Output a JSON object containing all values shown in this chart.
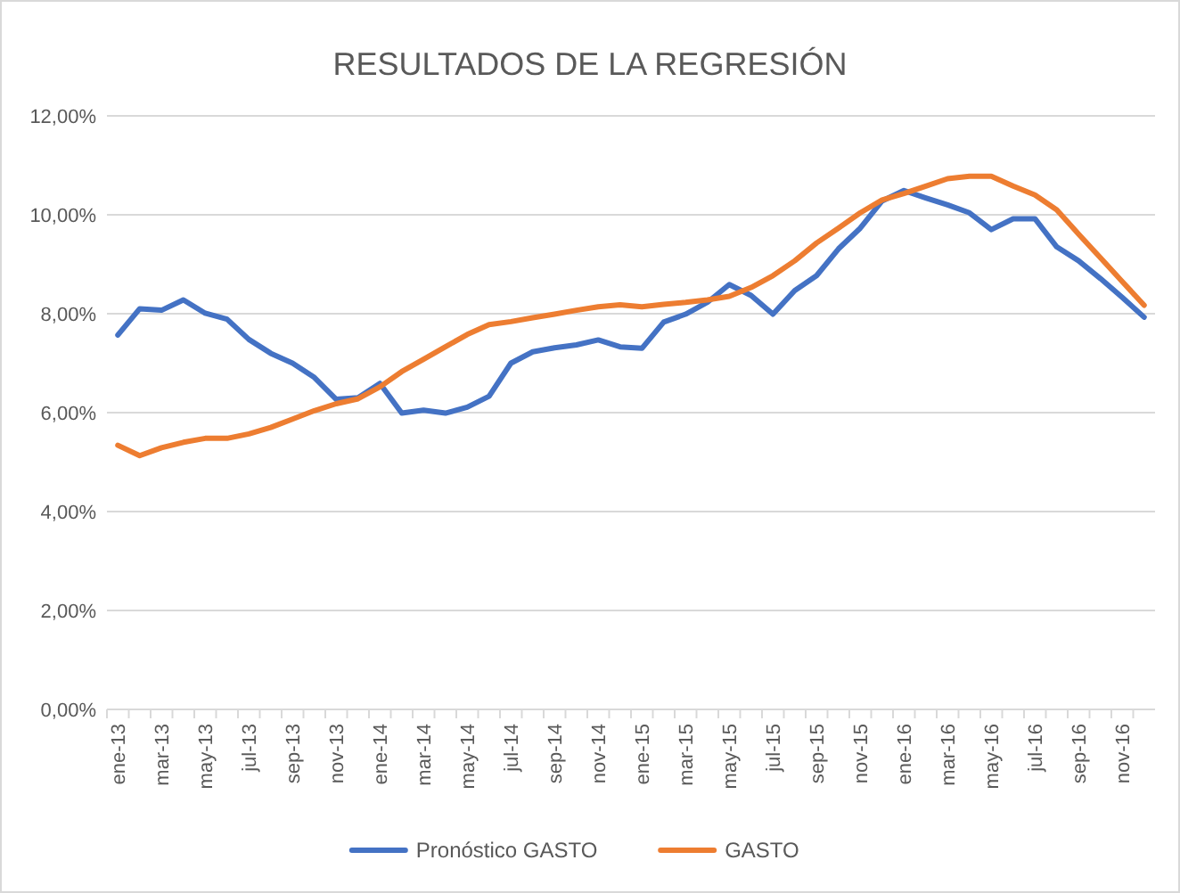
{
  "chart_data": {
    "type": "line",
    "title": "RESULTADOS DE LA REGRESIÓN",
    "categories": [
      "ene-13",
      null,
      "mar-13",
      null,
      "may-13",
      null,
      "jul-13",
      null,
      "sep-13",
      null,
      "nov-13",
      null,
      "ene-14",
      null,
      "mar-14",
      null,
      "may-14",
      null,
      "jul-14",
      null,
      "sep-14",
      null,
      "nov-14",
      null,
      "ene-15",
      null,
      "mar-15",
      null,
      "may-15",
      null,
      "jul-15",
      null,
      "sep-15",
      null,
      "nov-15",
      null,
      "ene-16",
      null,
      "mar-16",
      null,
      "may-16",
      null,
      "jul-16",
      null,
      "sep-16",
      null,
      "nov-16",
      null
    ],
    "series": [
      {
        "name": "Pronóstico GASTO",
        "color": "#4472c4",
        "values": [
          7.57,
          8.1,
          8.07,
          8.28,
          8.01,
          7.89,
          7.48,
          7.2,
          7.0,
          6.71,
          6.27,
          6.3,
          6.59,
          5.99,
          6.05,
          5.99,
          6.11,
          6.33,
          7.0,
          7.23,
          7.31,
          7.37,
          7.47,
          7.33,
          7.3,
          7.83,
          7.99,
          8.23,
          8.59,
          8.37,
          7.99,
          8.47,
          8.77,
          9.31,
          9.73,
          10.28,
          10.49,
          10.34,
          10.2,
          10.04,
          9.7,
          9.92,
          9.92,
          9.35,
          9.07,
          8.71,
          8.33,
          7.93
        ]
      },
      {
        "name": "GASTO",
        "color": "#ed7d31",
        "values": [
          5.34,
          5.13,
          5.29,
          5.4,
          5.48,
          5.48,
          5.57,
          5.7,
          5.87,
          6.04,
          6.18,
          6.28,
          6.52,
          6.83,
          7.08,
          7.33,
          7.58,
          7.78,
          7.84,
          7.92,
          7.99,
          8.07,
          8.14,
          8.18,
          8.14,
          8.19,
          8.23,
          8.28,
          8.35,
          8.53,
          8.77,
          9.07,
          9.43,
          9.73,
          10.04,
          10.3,
          10.43,
          10.58,
          10.73,
          10.78,
          10.78,
          10.58,
          10.4,
          10.1,
          9.61,
          9.13,
          8.65,
          8.17
        ]
      }
    ],
    "ylim": [
      0,
      12
    ],
    "yticks": [
      {
        "value": 0,
        "label": "0,00%"
      },
      {
        "value": 2,
        "label": "2,00%"
      },
      {
        "value": 4,
        "label": "4,00%"
      },
      {
        "value": 6,
        "label": "6,00%"
      },
      {
        "value": 8,
        "label": "8,00%"
      },
      {
        "value": 10,
        "label": "10,00%"
      },
      {
        "value": 12,
        "label": "12,00%"
      }
    ],
    "grid": "y",
    "legend": "bottom",
    "marker": "none",
    "line_style": "solid"
  }
}
